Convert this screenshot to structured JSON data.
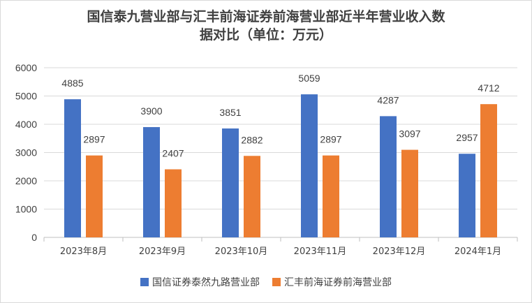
{
  "chart_data": {
    "type": "bar",
    "title_lines": [
      "国信泰九营业部与汇丰前海证券前海营业部近半年营业收入数",
      "据对比（单位：万元）"
    ],
    "categories": [
      "2023年8月",
      "2023年9月",
      "2023年10月",
      "2023年11月",
      "2023年12月",
      "2024年1月"
    ],
    "series": [
      {
        "name": "国信证券泰然九路营业部",
        "color": "#4472C4",
        "values": [
          4885,
          3900,
          3851,
          5059,
          4287,
          2957
        ]
      },
      {
        "name": "汇丰前海证券前海营业部",
        "color": "#ED7D31",
        "values": [
          2897,
          2407,
          2882,
          2897,
          3097,
          4712
        ]
      }
    ],
    "ylim": [
      0,
      6000
    ],
    "yticks": [
      0,
      1000,
      2000,
      3000,
      4000,
      5000,
      6000
    ],
    "grid": true,
    "legend_position": "bottom"
  }
}
